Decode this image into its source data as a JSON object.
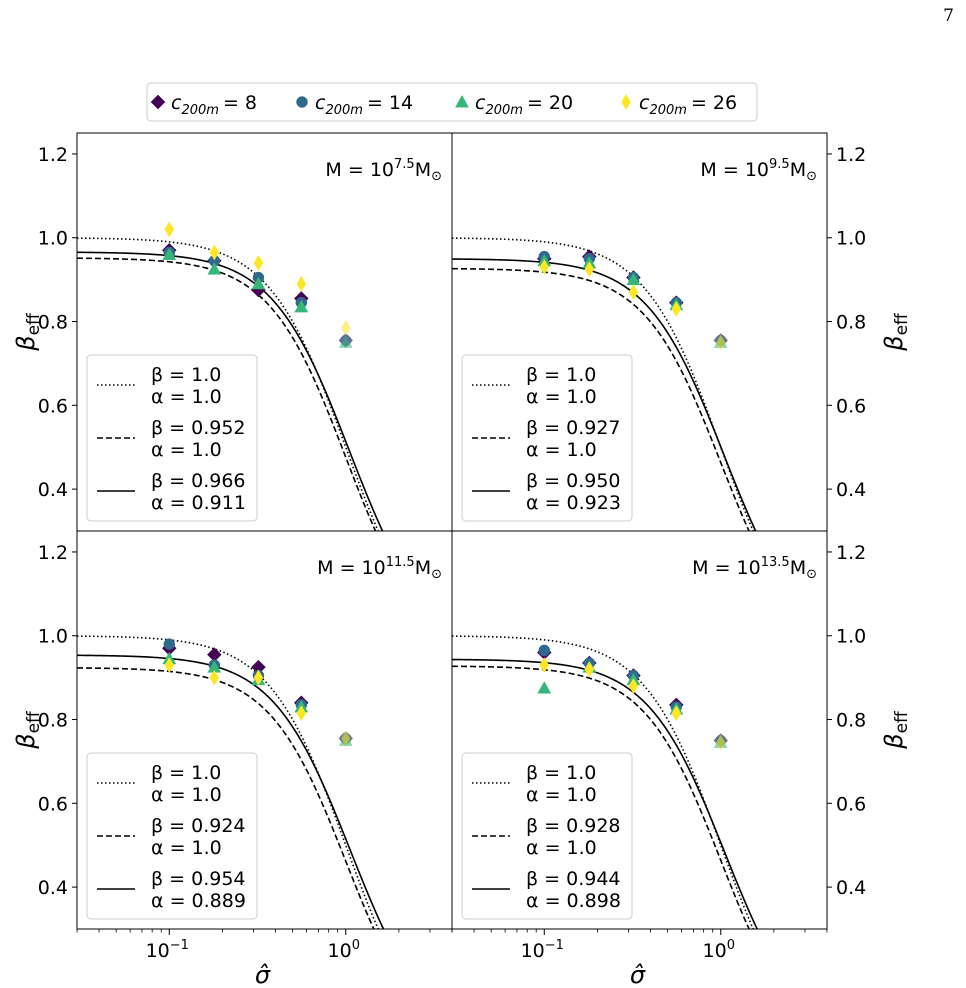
{
  "page_number": "7",
  "legend_title_prefix": "c",
  "chart_data": {
    "type": "scatter",
    "layout": "2x2 grid",
    "x_scale": "log",
    "xlim": [
      0.03,
      4.0
    ],
    "ylim": [
      0.3,
      1.25
    ],
    "xlabel": "σ̂",
    "ylabel": "β_eff",
    "x_ticks": [
      {
        "value": 0.1,
        "base": "10",
        "exp": "−1"
      },
      {
        "value": 1.0,
        "base": "10",
        "exp": "0"
      }
    ],
    "y_ticks": [
      0.4,
      0.6,
      0.8,
      1.0,
      1.2
    ],
    "y_tick_labels": [
      "0.4",
      "0.6",
      "0.8",
      "1.0",
      "1.2"
    ],
    "series_styles": [
      {
        "name": "c_200m = 8",
        "label_sub": "200m",
        "label_value": "= 8",
        "color": "#440154",
        "marker": "diamond"
      },
      {
        "name": "c_200m = 14",
        "label_sub": "200m",
        "label_value": "= 14",
        "color": "#31688e",
        "marker": "circle"
      },
      {
        "name": "c_200m = 20",
        "label_sub": "200m",
        "label_value": "= 20",
        "color": "#35b779",
        "marker": "triangle"
      },
      {
        "name": "c_200m = 26",
        "label_sub": "200m",
        "label_value": "= 26",
        "color": "#fde725",
        "marker": "thin-diamond"
      }
    ],
    "curve_styles": [
      "dotted",
      "dashed",
      "solid"
    ],
    "panels": [
      {
        "mass_label": "M = 10",
        "mass_exp": "7.5",
        "mass_unit": "M",
        "mass_sub": "⊙",
        "x": [
          0.1,
          0.18,
          0.32,
          0.56,
          1.0
        ],
        "series": [
          {
            "name": "c_200m = 8",
            "values": [
              0.97,
              0.945,
              0.875,
              0.855,
              0.755
            ]
          },
          {
            "name": "c_200m = 14",
            "values": [
              0.965,
              0.945,
              0.905,
              0.845,
              0.755
            ]
          },
          {
            "name": "c_200m = 20",
            "values": [
              0.96,
              0.925,
              0.89,
              0.835,
              0.75
            ]
          },
          {
            "name": "c_200m = 26",
            "values": [
              1.02,
              0.965,
              0.94,
              0.89,
              0.785
            ]
          }
        ],
        "fits": [
          {
            "style": "dotted",
            "beta": 1.0,
            "alpha": 1.0,
            "beta_label": "β = 1.0",
            "alpha_label": "α = 1.0"
          },
          {
            "style": "dashed",
            "beta": 0.952,
            "alpha": 1.0,
            "beta_label": "β = 0.952",
            "alpha_label": "α = 1.0"
          },
          {
            "style": "solid",
            "beta": 0.966,
            "alpha": 0.911,
            "beta_label": "β = 0.966",
            "alpha_label": "α = 0.911"
          }
        ]
      },
      {
        "mass_label": "M = 10",
        "mass_exp": "9.5",
        "mass_unit": "M",
        "mass_sub": "⊙",
        "x": [
          0.1,
          0.18,
          0.32,
          0.56,
          1.0
        ],
        "series": [
          {
            "name": "c_200m = 8",
            "values": [
              0.95,
              0.955,
              0.905,
              0.845,
              0.755
            ]
          },
          {
            "name": "c_200m = 14",
            "values": [
              0.955,
              0.95,
              0.905,
              0.845,
              0.755
            ]
          },
          {
            "name": "c_200m = 20",
            "values": [
              0.945,
              0.94,
              0.9,
              0.84,
              0.75
            ]
          },
          {
            "name": "c_200m = 26",
            "values": [
              0.93,
              0.925,
              0.87,
              0.83,
              0.75
            ]
          }
        ],
        "fits": [
          {
            "style": "dotted",
            "beta": 1.0,
            "alpha": 1.0,
            "beta_label": "β = 1.0",
            "alpha_label": "α = 1.0"
          },
          {
            "style": "dashed",
            "beta": 0.927,
            "alpha": 1.0,
            "beta_label": "β = 0.927",
            "alpha_label": "α = 1.0"
          },
          {
            "style": "solid",
            "beta": 0.95,
            "alpha": 0.923,
            "beta_label": "β = 0.950",
            "alpha_label": "α = 0.923"
          }
        ]
      },
      {
        "mass_label": "M = 10",
        "mass_exp": "11.5",
        "mass_unit": "M",
        "mass_sub": "⊙",
        "x": [
          0.1,
          0.18,
          0.32,
          0.56,
          1.0
        ],
        "series": [
          {
            "name": "c_200m = 8",
            "values": [
              0.97,
              0.955,
              0.925,
              0.84,
              0.755
            ]
          },
          {
            "name": "c_200m = 14",
            "values": [
              0.98,
              0.93,
              0.905,
              0.835,
              0.755
            ]
          },
          {
            "name": "c_200m = 20",
            "values": [
              0.945,
              0.925,
              0.895,
              0.83,
              0.75
            ]
          },
          {
            "name": "c_200m = 26",
            "values": [
              0.93,
              0.9,
              0.9,
              0.815,
              0.755
            ]
          }
        ],
        "fits": [
          {
            "style": "dotted",
            "beta": 1.0,
            "alpha": 1.0,
            "beta_label": "β = 1.0",
            "alpha_label": "α = 1.0"
          },
          {
            "style": "dashed",
            "beta": 0.924,
            "alpha": 1.0,
            "beta_label": "β = 0.924",
            "alpha_label": "α = 1.0"
          },
          {
            "style": "solid",
            "beta": 0.954,
            "alpha": 0.889,
            "beta_label": "β = 0.954",
            "alpha_label": "α = 0.889"
          }
        ]
      },
      {
        "mass_label": "M = 10",
        "mass_exp": "13.5",
        "mass_unit": "M",
        "mass_sub": "⊙",
        "x": [
          0.1,
          0.18,
          0.32,
          0.56,
          1.0
        ],
        "series": [
          {
            "name": "c_200m = 8",
            "values": [
              0.96,
              0.935,
              0.905,
              0.835,
              0.75
            ]
          },
          {
            "name": "c_200m = 14",
            "values": [
              0.965,
              0.935,
              0.905,
              0.83,
              0.75
            ]
          },
          {
            "name": "c_200m = 20",
            "values": [
              0.875,
              0.925,
              0.895,
              0.825,
              0.745
            ]
          },
          {
            "name": "c_200m = 26",
            "values": [
              0.93,
              0.92,
              0.88,
              0.815,
              0.745
            ]
          }
        ],
        "fits": [
          {
            "style": "dotted",
            "beta": 1.0,
            "alpha": 1.0,
            "beta_label": "β = 1.0",
            "alpha_label": "α = 1.0"
          },
          {
            "style": "dashed",
            "beta": 0.928,
            "alpha": 1.0,
            "beta_label": "β = 0.928",
            "alpha_label": "α = 1.0"
          },
          {
            "style": "solid",
            "beta": 0.944,
            "alpha": 0.898,
            "beta_label": "β = 0.944",
            "alpha_label": "α = 0.898"
          }
        ]
      }
    ]
  }
}
